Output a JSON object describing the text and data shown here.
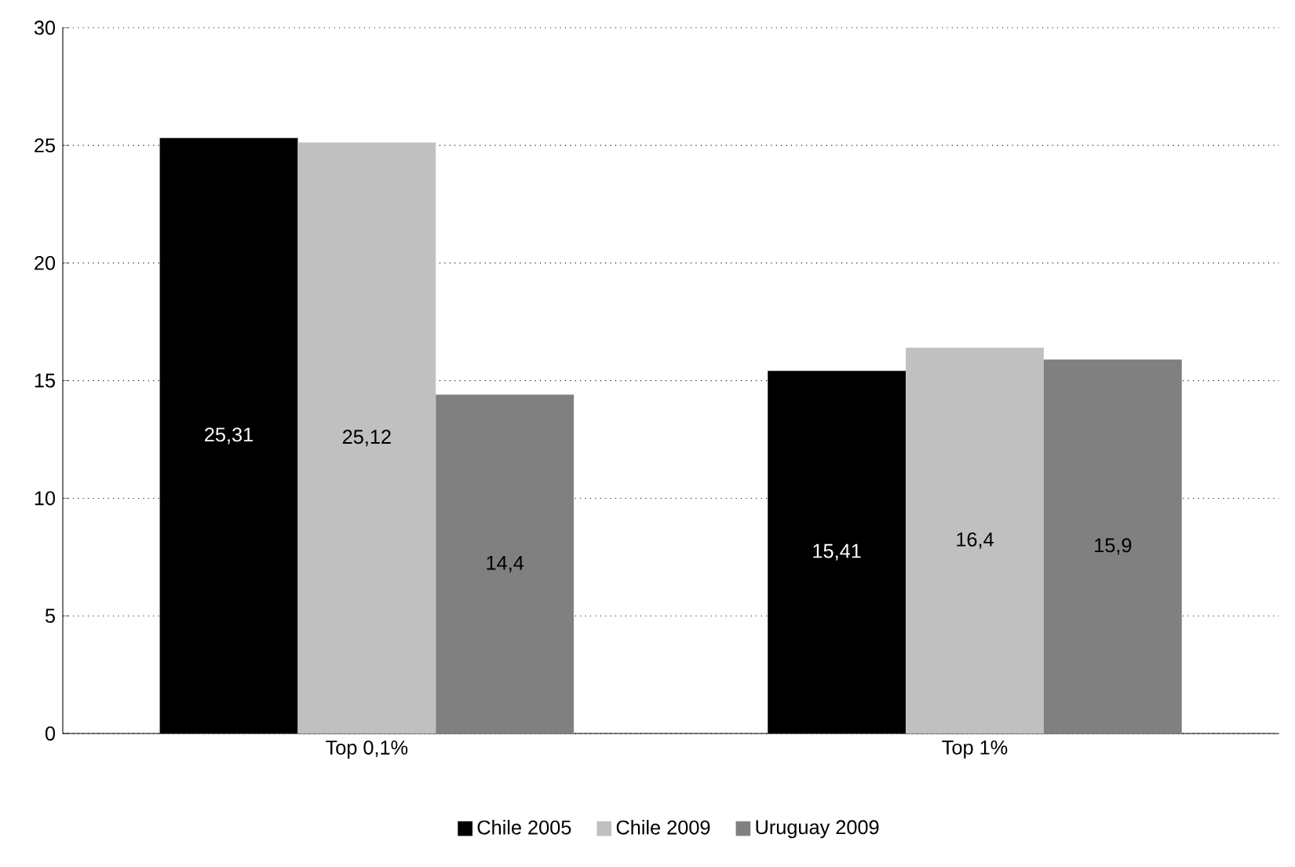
{
  "chart_data": {
    "type": "bar",
    "categories": [
      "Top 0,1%",
      "Top 1%"
    ],
    "series": [
      {
        "name": "Chile 2005",
        "color": "#000000",
        "values": [
          25.31,
          15.41
        ],
        "value_labels": [
          "25,31",
          "15,41"
        ]
      },
      {
        "name": "Chile 2009",
        "color": "#c0c0c0",
        "values": [
          25.12,
          16.4
        ],
        "value_labels": [
          "25,12",
          "16,4"
        ]
      },
      {
        "name": "Uruguay 2009",
        "color": "#808080",
        "values": [
          14.4,
          15.9
        ],
        "value_labels": [
          "14,4",
          "15,9"
        ]
      }
    ],
    "ylim": [
      0,
      30
    ],
    "yticks": [
      0,
      5,
      10,
      15,
      20,
      25,
      30
    ],
    "grid": "y",
    "legend": "bottom"
  }
}
